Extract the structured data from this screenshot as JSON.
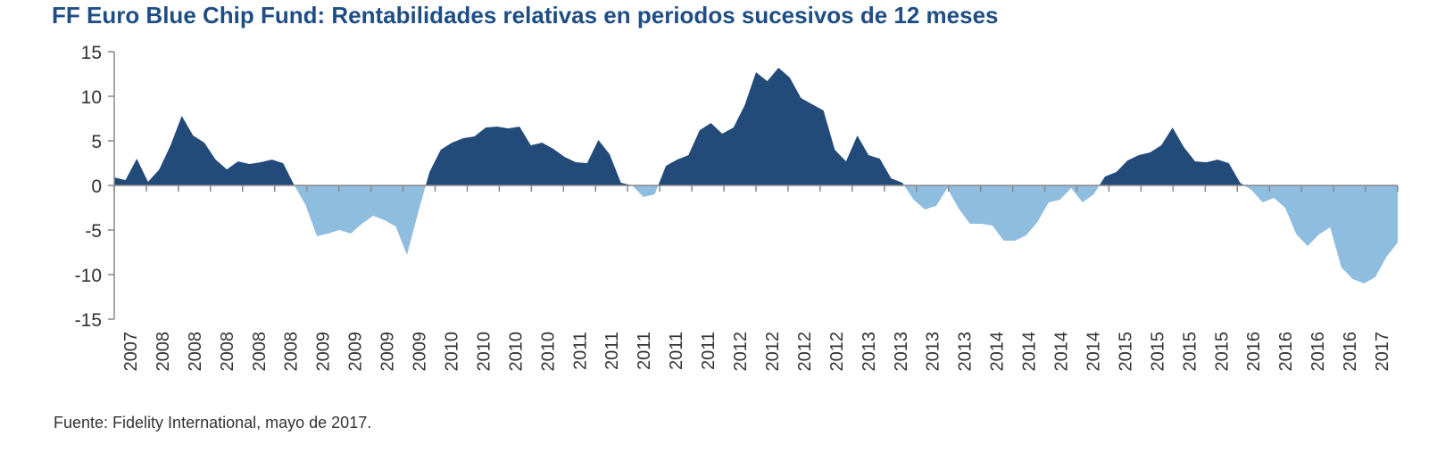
{
  "chart_data": {
    "type": "area",
    "title": "FF Euro Blue Chip Fund: Rentabilidades relativas en periodos sucesivos de 12 meses",
    "source": "Fuente: Fidelity International, mayo de 2017.",
    "xlabel": "",
    "ylabel": "",
    "ylim": [
      -15,
      15
    ],
    "y_ticks": [
      15,
      10,
      5,
      0,
      -5,
      -10,
      -15
    ],
    "x_tick_labels": [
      "2007",
      "2008",
      "2008",
      "2008",
      "2008",
      "2008",
      "2009",
      "2009",
      "2009",
      "2009",
      "2010",
      "2010",
      "2010",
      "2010",
      "2011",
      "2011",
      "2011",
      "2011",
      "2011",
      "2012",
      "2012",
      "2012",
      "2012",
      "2013",
      "2013",
      "2013",
      "2013",
      "2014",
      "2014",
      "2014",
      "2014",
      "2015",
      "2015",
      "2015",
      "2015",
      "2016",
      "2016",
      "2016",
      "2016",
      "2017"
    ],
    "grid": false,
    "colors": {
      "positive": "#234b7a",
      "negative": "#8fbde0",
      "title": "#1f4e85",
      "axis": "#888888"
    },
    "series": [
      {
        "values": [
          0.9,
          0.6,
          3.0,
          0.4,
          1.8,
          4.5,
          7.8,
          5.6,
          4.8,
          2.9,
          1.8,
          2.7,
          2.4,
          2.6,
          2.9,
          2.5,
          0.0,
          -2.2,
          -5.7,
          -5.4,
          -5.0,
          -5.4,
          -4.3,
          -3.4,
          -3.9,
          -4.6,
          -7.8,
          -3.0,
          1.5,
          4.0,
          4.8,
          5.3,
          5.5,
          6.5,
          6.6,
          6.4,
          6.6,
          4.5,
          4.8,
          4.1,
          3.2,
          2.6,
          2.5,
          5.1,
          3.5,
          0.3,
          0.0,
          -1.3,
          -1.0,
          2.2,
          2.9,
          3.4,
          6.2,
          7.0,
          5.8,
          6.5,
          9.0,
          12.7,
          11.7,
          13.2,
          12.1,
          9.8,
          9.1,
          8.4,
          4.0,
          2.7,
          5.6,
          3.4,
          3.0,
          0.8,
          0.3,
          -1.6,
          -2.7,
          -2.3,
          -0.3,
          -2.6,
          -4.3,
          -4.3,
          -4.5,
          -6.2,
          -6.2,
          -5.6,
          -4.1,
          -1.9,
          -1.6,
          -0.3,
          -1.9,
          -1.0,
          1.0,
          1.5,
          2.8,
          3.4,
          3.7,
          4.5,
          6.5,
          4.3,
          2.7,
          2.6,
          2.9,
          2.5,
          0.3,
          -0.5,
          -1.9,
          -1.4,
          -2.5,
          -5.5,
          -6.8,
          -5.5,
          -4.7,
          -9.2,
          -10.5,
          -11.0,
          -10.3,
          -8.0,
          -6.4
        ]
      }
    ]
  }
}
